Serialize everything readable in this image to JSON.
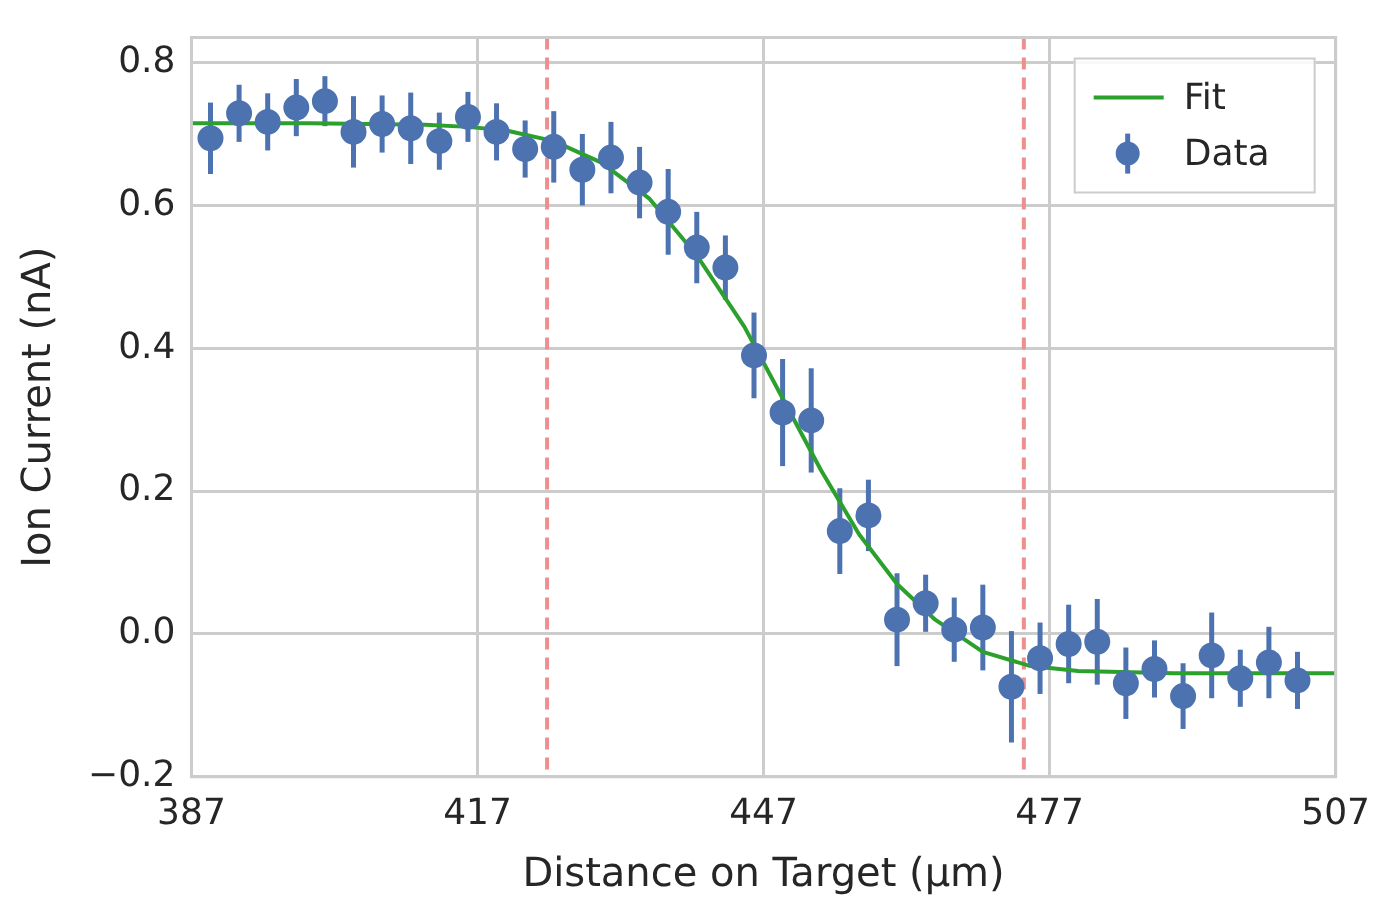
{
  "chart_data": {
    "type": "scatter",
    "xlabel": "Distance on Target (μm)",
    "ylabel": "Ion Current (nA)",
    "xlim": [
      387,
      507
    ],
    "xticks": [
      387,
      417,
      447,
      477,
      507
    ],
    "ylim": [
      -0.2,
      0.835
    ],
    "yticks": [
      {
        "value": -0.2,
        "label": "−0.2"
      },
      {
        "value": 0,
        "label": "0.0"
      },
      {
        "value": 0.2,
        "label": "0.2"
      },
      {
        "value": 0.4,
        "label": "0.4"
      },
      {
        "value": 0.6,
        "label": "0.6"
      },
      {
        "value": 0.8,
        "label": "0.8"
      }
    ],
    "grid": true,
    "legend": "top right",
    "marker": "circle",
    "series": [
      {
        "name": "Fit",
        "type": "line",
        "color": "#2ca02c",
        "marker": "none",
        "x": [
          387,
          399.5,
          411.5,
          416,
          420,
          425,
          430,
          435,
          440,
          445,
          449,
          453,
          457,
          461,
          465,
          470,
          475,
          480,
          490,
          507
        ],
        "values": [
          0.715,
          0.715,
          0.713,
          0.71,
          0.705,
          0.69,
          0.66,
          0.61,
          0.53,
          0.43,
          0.33,
          0.23,
          0.14,
          0.07,
          0.02,
          -0.025,
          -0.045,
          -0.052,
          -0.055,
          -0.055
        ]
      },
      {
        "name": "Data",
        "type": "scatter",
        "color": "#4c72b0",
        "x": [
          389,
          392,
          395,
          398,
          401,
          404,
          407,
          410,
          413,
          416,
          419,
          422,
          425,
          428,
          431,
          434,
          437,
          440,
          443,
          446,
          449,
          452,
          455,
          458,
          461,
          464,
          467,
          470,
          473,
          476,
          479,
          482,
          485,
          488,
          491,
          494,
          497,
          500,
          503
        ],
        "values": [
          0.694,
          0.729,
          0.717,
          0.737,
          0.746,
          0.703,
          0.714,
          0.708,
          0.69,
          0.724,
          0.703,
          0.679,
          0.682,
          0.65,
          0.667,
          0.632,
          0.591,
          0.541,
          0.513,
          0.39,
          0.31,
          0.299,
          0.144,
          0.166,
          0.02,
          0.043,
          0.006,
          0.009,
          -0.074,
          -0.034,
          -0.014,
          -0.011,
          -0.069,
          -0.049,
          -0.087,
          -0.03,
          -0.062,
          -0.04,
          -0.065
        ],
        "errors": [
          0.05,
          0.04,
          0.04,
          0.04,
          0.035,
          0.05,
          0.04,
          0.05,
          0.04,
          0.035,
          0.04,
          0.04,
          0.05,
          0.05,
          0.05,
          0.05,
          0.06,
          0.05,
          0.045,
          0.06,
          0.075,
          0.073,
          0.06,
          0.05,
          0.065,
          0.04,
          0.045,
          0.06,
          0.078,
          0.05,
          0.055,
          0.06,
          0.05,
          0.04,
          0.046,
          0.06,
          0.04,
          0.05,
          0.04
        ]
      }
    ],
    "ref_lines": [
      {
        "axis": "x",
        "value": 424.3,
        "color": "#ee8e8e",
        "line_style": "dashed"
      },
      {
        "axis": "x",
        "value": 474.3,
        "color": "#ee8e8e",
        "line_style": "dashed"
      }
    ]
  }
}
